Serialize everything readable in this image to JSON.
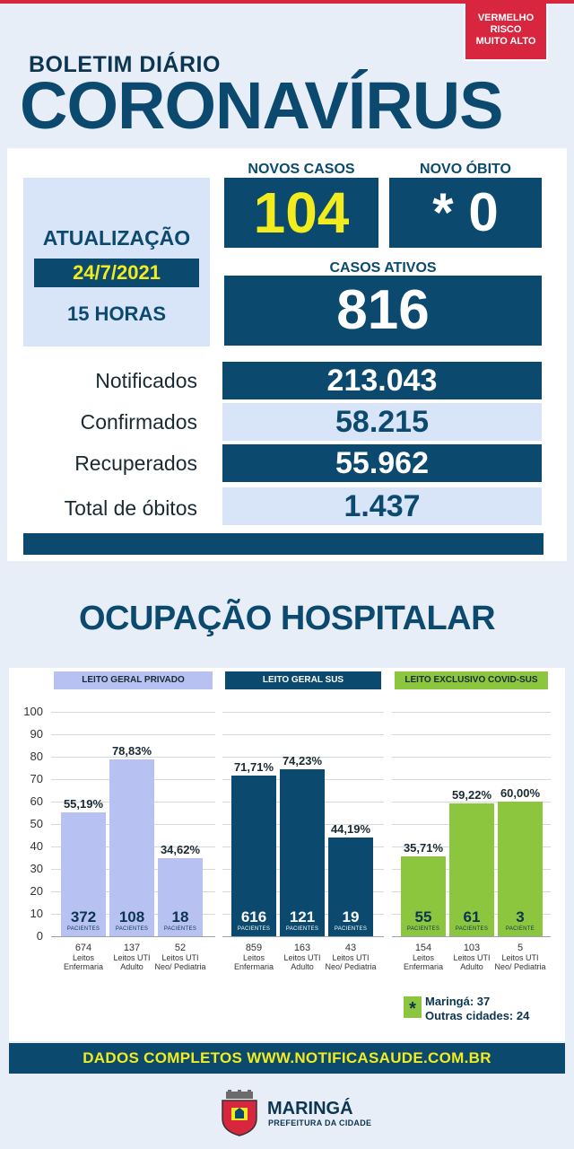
{
  "risk_badge": [
    "VERMELHO",
    "RISCO",
    "MUITO ALTO"
  ],
  "header": {
    "bulletin": "BOLETIM DIÁRIO",
    "title": "CORONAVÍRUS"
  },
  "update": {
    "label": "ATUALIZAÇÃO",
    "date": "24/7/2021",
    "time": "15 HORAS"
  },
  "new_cases": {
    "label": "NOVOS CASOS",
    "value": "104"
  },
  "new_death": {
    "label": "NOVO ÓBITO",
    "value": "* 0"
  },
  "active_cases": {
    "label": "CASOS ATIVOS",
    "value": "816"
  },
  "totals": [
    {
      "label": "Notificados",
      "value": "213.043"
    },
    {
      "label": "Confirmados",
      "value": "58.215"
    },
    {
      "label": "Recuperados",
      "value": "55.962"
    },
    {
      "label": "Total de óbitos",
      "value": "1.437"
    }
  ],
  "hospital": {
    "title": "OCUPAÇÃO HOSPITALAR"
  },
  "colors": {
    "dark_blue": "#0b4a6e",
    "lavender": "#b8c2f2",
    "green": "#8cc63f",
    "yellow": "#f2ec1e",
    "red": "#d7263d"
  },
  "chart_data": {
    "type": "bar",
    "ylim": [
      0,
      100
    ],
    "yticks": [
      0,
      10,
      20,
      30,
      40,
      50,
      60,
      70,
      80,
      90,
      100
    ],
    "patients_label": "PACIENTES",
    "patient_label_singular": "PACIENTE",
    "groups": [
      {
        "name": "LEITO GERAL PRIVADO",
        "color": "#b8c2f2",
        "categories": [
          "Leitos Enfermaria",
          "Leitos UTI Adulto",
          "Leitos UTI Neo/ Pediatria"
        ],
        "values": [
          55.19,
          78.83,
          34.62
        ],
        "value_labels": [
          "55,19%",
          "78,83%",
          "34,62%"
        ],
        "patients": [
          "372",
          "108",
          "18"
        ],
        "beds": [
          "674",
          "137",
          "52"
        ]
      },
      {
        "name": "LEITO GERAL SUS",
        "color": "#0b4a6e",
        "categories": [
          "Leitos Enfermaria",
          "Leitos UTI Adulto",
          "Leitos UTI Neo/ Pediatria"
        ],
        "values": [
          71.71,
          74.23,
          44.19
        ],
        "value_labels": [
          "71,71%",
          "74,23%",
          "44,19%"
        ],
        "patients": [
          "616",
          "121",
          "19"
        ],
        "beds": [
          "859",
          "163",
          "43"
        ]
      },
      {
        "name": "LEITO EXCLUSIVO COVID-SUS",
        "color": "#8cc63f",
        "categories": [
          "Leitos Enfermaria",
          "Leitos UTI Adulto",
          "Leitos UTI Neo/ Pediatria"
        ],
        "values": [
          35.71,
          59.22,
          60.0
        ],
        "value_labels": [
          "35,71%",
          "59,22%",
          "60,00%"
        ],
        "patients": [
          "55",
          "61",
          "3"
        ],
        "beds": [
          "154",
          "103",
          "5"
        ]
      }
    ]
  },
  "legend": {
    "star": "*",
    "maringa": "Maringá: 37",
    "others": "Outras cidades: 24"
  },
  "footer": {
    "text": "DADOS COMPLETOS  WWW.NOTIFICASAUDE.COM.BR"
  },
  "logo": {
    "city": "MARINGÁ",
    "subtitle": "PREFEITURA DA CIDADE",
    "icon": "city-crest-icon"
  }
}
